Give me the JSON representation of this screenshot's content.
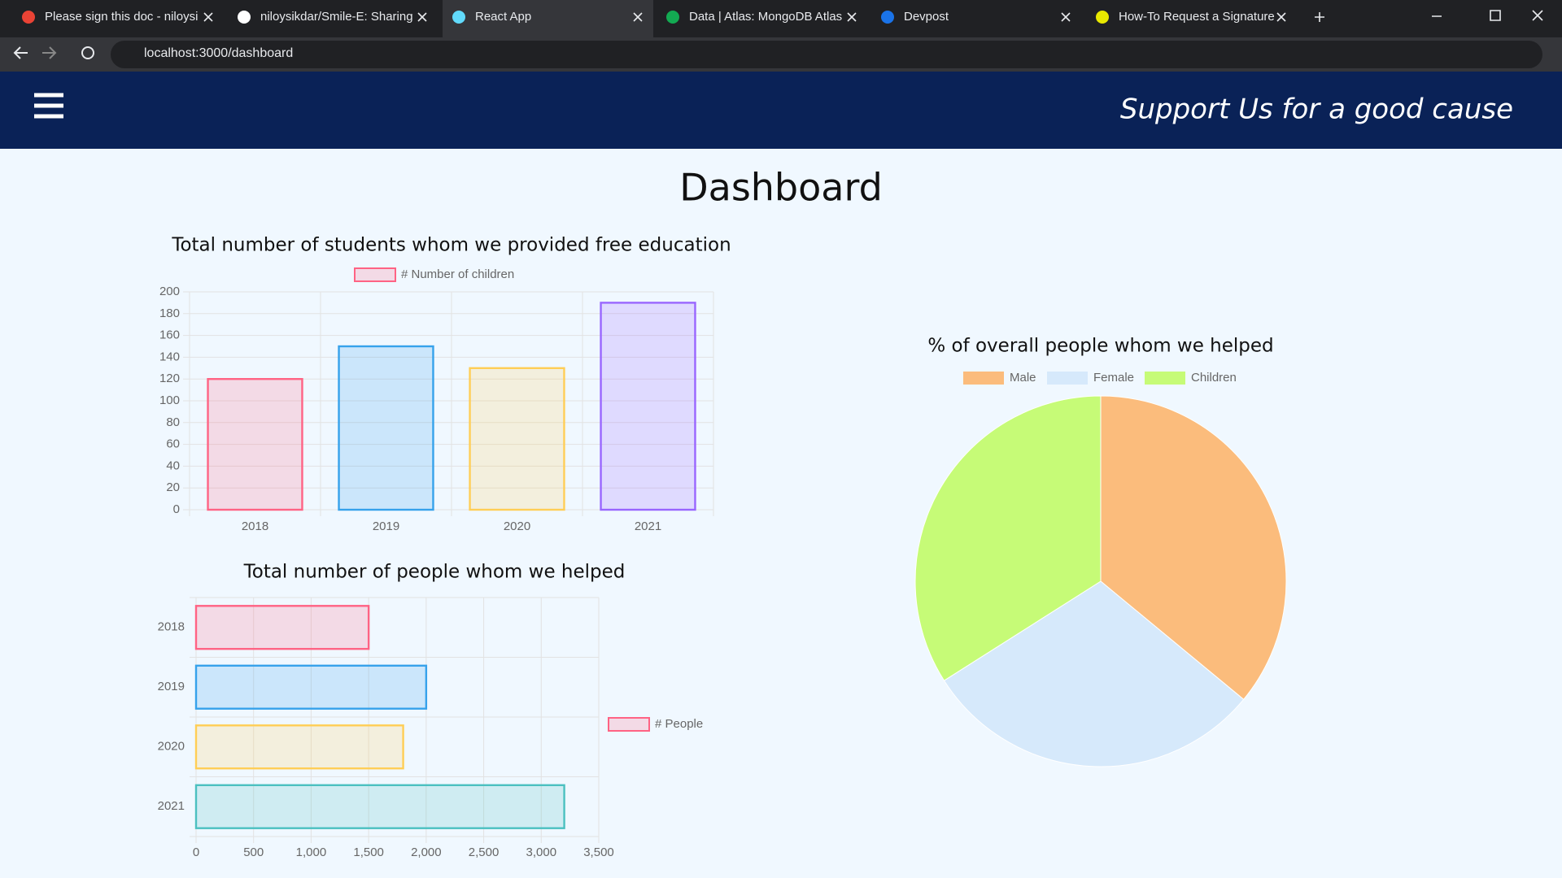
{
  "browser": {
    "tabs": [
      "Please sign this doc - niloysi",
      "niloysikdar/Smile-E: Sharing",
      "React App",
      "Data | Atlas: MongoDB Atlas",
      "Devpost",
      "How-To Request a Signature"
    ],
    "url": "localhost:3000/dashboard"
  },
  "header": {
    "tagline": "Support Us for a good cause"
  },
  "page": {
    "title": "Dashboard"
  },
  "chart_data": [
    {
      "type": "bar",
      "title": "Total number of students whom we provided free education",
      "categories": [
        "2018",
        "2019",
        "2020",
        "2021"
      ],
      "series": [
        {
          "name": "# Number of children",
          "values": [
            120,
            150,
            130,
            190
          ],
          "colors": [
            "#ff6384",
            "#36a2eb",
            "#ffce56",
            "#9966ff"
          ]
        }
      ],
      "ylim": [
        0,
        200
      ],
      "yticks": [
        0,
        20,
        40,
        60,
        80,
        100,
        120,
        140,
        160,
        180,
        200
      ],
      "grid": true,
      "legend": "top"
    },
    {
      "type": "barh",
      "title": "Total number of people whom we helped",
      "categories": [
        "2018",
        "2019",
        "2020",
        "2021"
      ],
      "series": [
        {
          "name": "# People",
          "values": [
            1500,
            2000,
            1800,
            3200
          ],
          "colors": [
            "#ff6384",
            "#36a2eb",
            "#ffce56",
            "#4bc0c0"
          ]
        }
      ],
      "xlim": [
        0,
        3500
      ],
      "xticks": [
        0,
        500,
        {
          "value": 1000,
          "label": "1,000"
        },
        {
          "value": 1500,
          "label": "1,500"
        },
        {
          "value": 2000,
          "label": "2,000"
        },
        {
          "value": 2500,
          "label": "2,500"
        },
        {
          "value": 3000,
          "label": "3,000"
        },
        {
          "value": 3500,
          "label": "3,500"
        }
      ],
      "grid": true,
      "legend": "right"
    },
    {
      "type": "pie",
      "title": "% of overall people whom we helped",
      "categories": [
        "Male",
        "Female",
        "Children"
      ],
      "values": [
        36,
        30,
        34
      ],
      "colors": [
        "#fbbc7c",
        "#d6e9fb",
        "#c6fb77"
      ],
      "legend": "top"
    }
  ]
}
